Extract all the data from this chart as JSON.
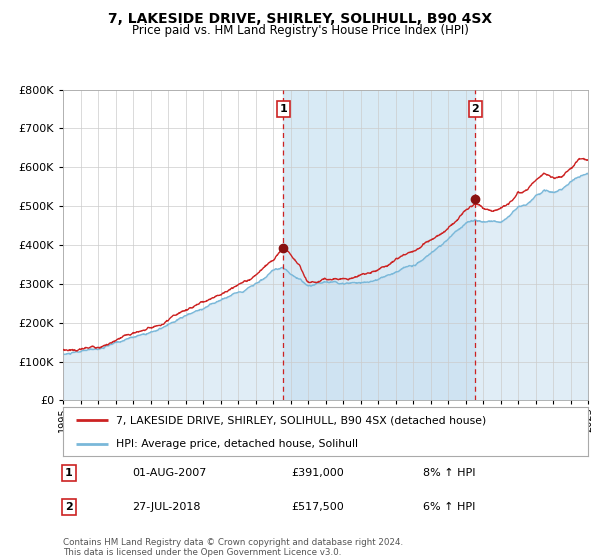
{
  "title": "7, LAKESIDE DRIVE, SHIRLEY, SOLIHULL, B90 4SX",
  "subtitle": "Price paid vs. HM Land Registry's House Price Index (HPI)",
  "legend_line1": "7, LAKESIDE DRIVE, SHIRLEY, SOLIHULL, B90 4SX (detached house)",
  "legend_line2": "HPI: Average price, detached house, Solihull",
  "footnote1": "Contains HM Land Registry data © Crown copyright and database right 2024.",
  "footnote2": "This data is licensed under the Open Government Licence v3.0.",
  "transaction1_label": "1",
  "transaction1_date": "01-AUG-2007",
  "transaction1_price": "£391,000",
  "transaction1_hpi": "8% ↑ HPI",
  "transaction2_label": "2",
  "transaction2_date": "27-JUL-2018",
  "transaction2_price": "£517,500",
  "transaction2_hpi": "6% ↑ HPI",
  "hpi_color": "#7ab8d9",
  "hpi_fill_color": "#c8dff0",
  "price_color": "#cc2222",
  "marker_color": "#881111",
  "vline_color": "#cc2222",
  "grid_color": "#cccccc",
  "background_color": "#ffffff",
  "plot_bg_color": "#ffffff",
  "shaded_region_color": "#d8eaf5",
  "ylim": [
    0,
    800000
  ],
  "yticks": [
    0,
    100000,
    200000,
    300000,
    400000,
    500000,
    600000,
    700000,
    800000
  ],
  "year_start": 1995,
  "year_end": 2025,
  "transaction1_year": 2007.583,
  "transaction2_year": 2018.569,
  "transaction1_price_val": 391000,
  "transaction2_price_val": 517500
}
